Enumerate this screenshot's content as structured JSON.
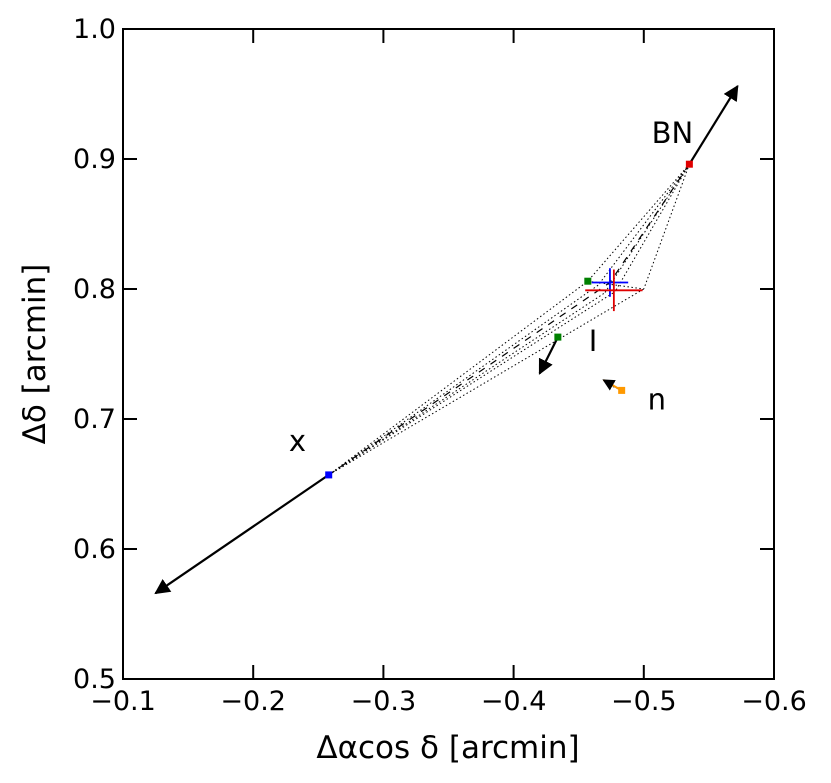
{
  "chart_data": {
    "type": "scatter",
    "xlabel": "Δαcos δ [arcmin]",
    "ylabel": "Δδ [arcmin]",
    "xlim": [
      -0.1,
      -0.6
    ],
    "ylim": [
      0.5,
      1.0
    ],
    "xticks": [
      "−0.1",
      "−0.2",
      "−0.3",
      "−0.4",
      "−0.5",
      "−0.6"
    ],
    "yticks": [
      "0.5",
      "0.6",
      "0.7",
      "0.8",
      "0.9",
      "1.0"
    ],
    "grid": false,
    "annotations": [
      {
        "text": "BN",
        "x": -0.522,
        "y": 0.92
      },
      {
        "text": "I",
        "x": -0.461,
        "y": 0.76
      },
      {
        "text": "n",
        "x": -0.51,
        "y": 0.715
      },
      {
        "text": "x",
        "x": -0.234,
        "y": 0.683
      }
    ],
    "sources": [
      {
        "name": "BN",
        "x": -0.535,
        "y": 0.896,
        "color": "#e00000",
        "arrow_to": [
          -0.572,
          0.956
        ]
      },
      {
        "name": "I",
        "x": -0.434,
        "y": 0.763,
        "color": "#008000",
        "arrow_to": [
          -0.42,
          0.735
        ]
      },
      {
        "name": "I-start",
        "x": -0.457,
        "y": 0.806,
        "color": "#008000"
      },
      {
        "name": "n",
        "x": -0.483,
        "y": 0.722,
        "color": "#ff9900",
        "arrow_to": [
          -0.469,
          0.73
        ]
      },
      {
        "name": "x",
        "x": -0.258,
        "y": 0.657,
        "color": "#0000ff",
        "arrow_to": [
          -0.125,
          0.566
        ]
      }
    ],
    "crosses": [
      {
        "x": -0.474,
        "y": 0.805,
        "color": "#0000ff",
        "dx": 0.014,
        "dy": 0.011
      },
      {
        "x": -0.477,
        "y": 0.799,
        "color": "#e00000",
        "dx": 0.022,
        "dy": 0.016
      }
    ],
    "dotted_lines": [
      [
        [
          -0.258,
          0.657
        ],
        [
          -0.457,
          0.806
        ]
      ],
      [
        [
          -0.258,
          0.657
        ],
        [
          -0.465,
          0.803
        ]
      ],
      [
        [
          -0.258,
          0.657
        ],
        [
          -0.47,
          0.797
        ]
      ],
      [
        [
          -0.258,
          0.657
        ],
        [
          -0.478,
          0.798
        ]
      ],
      [
        [
          -0.258,
          0.657
        ],
        [
          -0.5,
          0.8
        ]
      ],
      [
        [
          -0.535,
          0.896
        ],
        [
          -0.457,
          0.806
        ]
      ],
      [
        [
          -0.535,
          0.896
        ],
        [
          -0.465,
          0.803
        ]
      ],
      [
        [
          -0.535,
          0.896
        ],
        [
          -0.47,
          0.797
        ]
      ],
      [
        [
          -0.535,
          0.896
        ],
        [
          -0.478,
          0.798
        ]
      ],
      [
        [
          -0.535,
          0.896
        ],
        [
          -0.5,
          0.8
        ]
      ],
      [
        [
          -0.457,
          0.806
        ],
        [
          -0.5,
          0.8
        ]
      ],
      [
        [
          -0.483,
          0.722
        ],
        [
          -0.474,
          0.726
        ]
      ],
      [
        [
          -0.474,
          0.726
        ],
        [
          -0.469,
          0.73
        ]
      ]
    ],
    "dashed_lines": [
      [
        [
          -0.258,
          0.657
        ],
        [
          -0.474,
          0.805
        ]
      ],
      [
        [
          -0.535,
          0.896
        ],
        [
          -0.474,
          0.805
        ]
      ]
    ]
  }
}
